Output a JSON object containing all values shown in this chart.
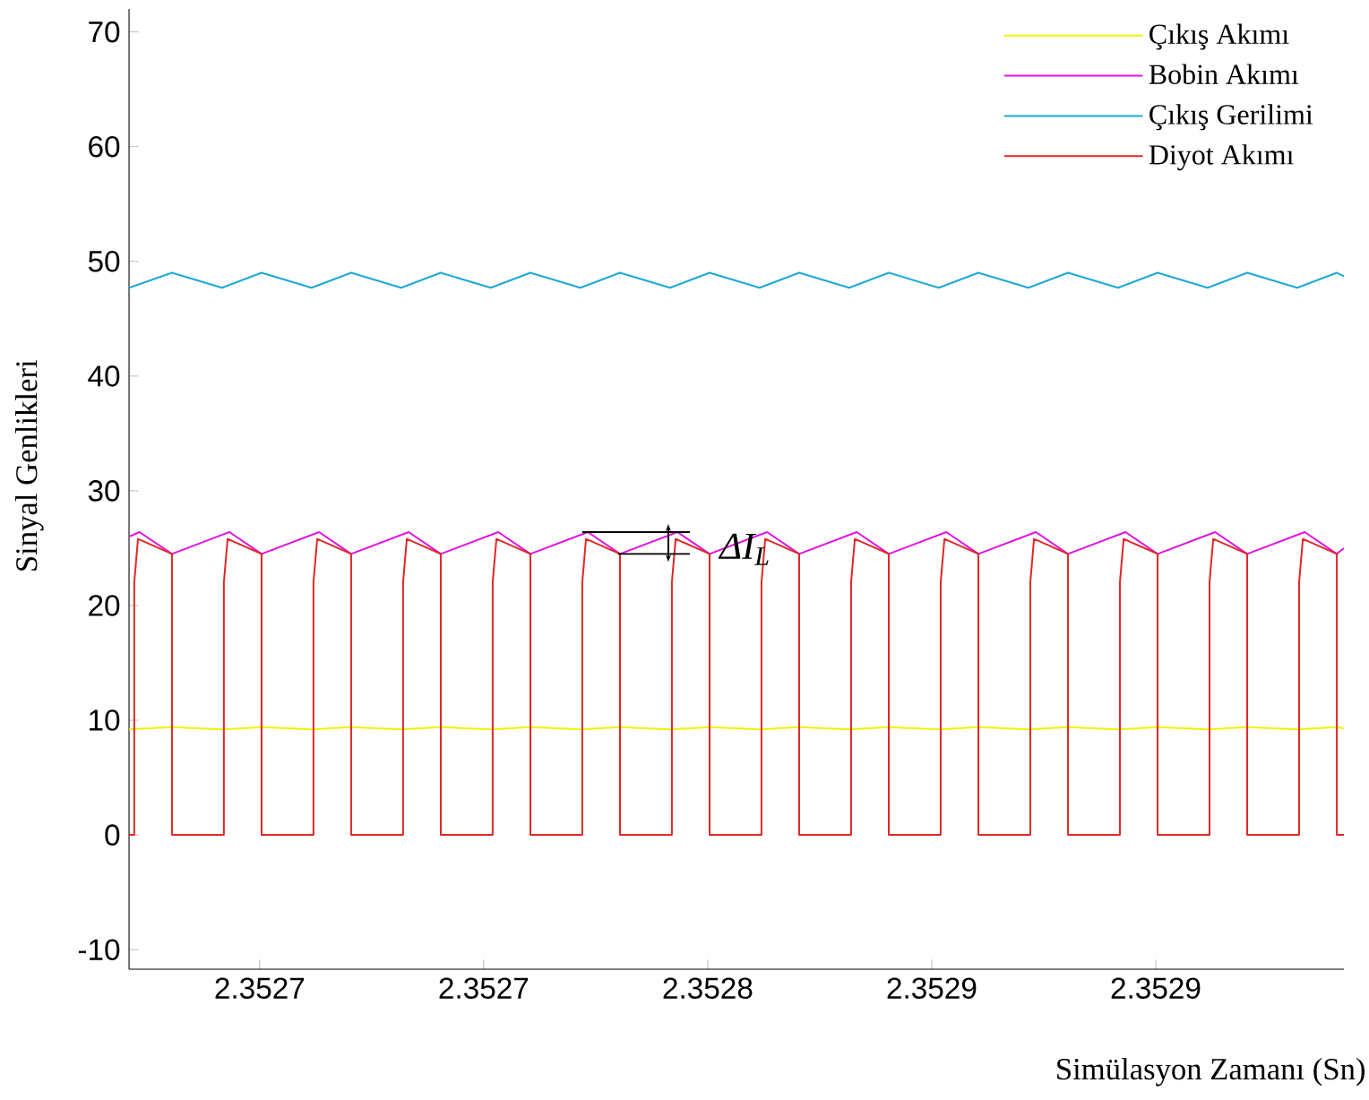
{
  "chart_data": {
    "type": "line",
    "xlabel": "Simülasyon Zamanı (Sn)",
    "ylabel": "Sinyal Genlikleri",
    "xlim": [
      2.352645,
      2.3529704
    ],
    "ylim": [
      -11.7,
      72.0
    ],
    "xticks": [
      {
        "value": 2.35268,
        "label": "2.3527"
      },
      {
        "value": 2.35274,
        "label": "2.3527"
      },
      {
        "value": 2.3528,
        "label": "2.3528"
      },
      {
        "value": 2.35286,
        "label": "2.3529"
      },
      {
        "value": 2.35292,
        "label": "2.3529"
      }
    ],
    "yticks": [
      -10,
      0,
      10,
      20,
      30,
      40,
      50,
      60,
      70
    ],
    "legend": "top right",
    "annotations": [
      {
        "text": "ΔI$_{L}$",
        "x": 2.3528024,
        "y": 24.9
      }
    ],
    "series": [
      {
        "name": "Çıkış Akımı",
        "color": "#f2f200",
        "x": [
          2.352645,
          2.3526565,
          2.3526699,
          2.3526805,
          2.3526939,
          2.3527045,
          2.3527179,
          2.3527285,
          2.3527419,
          2.3527525,
          2.3527659,
          2.3527765,
          2.3527899,
          2.3528005,
          2.3528139,
          2.3528245,
          2.3528379,
          2.3528485,
          2.3528619,
          2.3528725,
          2.3528859,
          2.3528965,
          2.3529099,
          2.3529205,
          2.3529339,
          2.3529445,
          2.3529579,
          2.3529685,
          2.3529704
        ],
        "values": [
          9.2,
          9.4,
          9.2,
          9.4,
          9.2,
          9.4,
          9.2,
          9.4,
          9.2,
          9.4,
          9.2,
          9.4,
          9.2,
          9.4,
          9.2,
          9.4,
          9.2,
          9.4,
          9.2,
          9.4,
          9.2,
          9.4,
          9.2,
          9.4,
          9.2,
          9.4,
          9.2,
          9.4,
          9.3
        ]
      },
      {
        "name": "Bobin Akımı",
        "color": "#e014e0",
        "x": [
          2.352645,
          2.3526478,
          2.3526565,
          2.3526719,
          2.3526805,
          2.3526959,
          2.3527045,
          2.3527199,
          2.3527285,
          2.3527439,
          2.3527525,
          2.3527679,
          2.3527765,
          2.3527919,
          2.3528005,
          2.3528159,
          2.3528245,
          2.3528399,
          2.3528485,
          2.3528639,
          2.3528725,
          2.3528879,
          2.3528965,
          2.3529119,
          2.3529205,
          2.3529359,
          2.3529445,
          2.3529599,
          2.3529685,
          2.3529704
        ],
        "values": [
          26.0,
          26.4,
          24.5,
          26.4,
          24.5,
          26.4,
          24.5,
          26.4,
          24.5,
          26.4,
          24.5,
          26.4,
          24.5,
          26.4,
          24.5,
          26.4,
          24.5,
          26.4,
          24.5,
          26.4,
          24.5,
          26.4,
          24.5,
          26.4,
          24.5,
          26.4,
          24.5,
          26.4,
          24.5,
          25.0
        ]
      },
      {
        "name": "Çıkış Gerilimi",
        "color": "#1fa8d4",
        "x": [
          2.352645,
          2.3526565,
          2.3526699,
          2.3526805,
          2.3526939,
          2.3527045,
          2.3527179,
          2.3527285,
          2.3527419,
          2.3527525,
          2.3527659,
          2.3527765,
          2.3527899,
          2.3528005,
          2.3528139,
          2.3528245,
          2.3528379,
          2.3528485,
          2.3528619,
          2.3528725,
          2.3528859,
          2.3528965,
          2.3529099,
          2.3529205,
          2.3529339,
          2.3529445,
          2.3529579,
          2.3529685,
          2.3529704
        ],
        "values": [
          47.7,
          49.0,
          47.7,
          49.0,
          47.7,
          49.0,
          47.7,
          49.0,
          47.7,
          49.0,
          47.7,
          49.0,
          47.7,
          49.0,
          47.7,
          49.0,
          47.7,
          49.0,
          47.7,
          49.0,
          47.7,
          49.0,
          47.7,
          49.0,
          47.7,
          49.0,
          47.7,
          49.0,
          48.7
        ]
      },
      {
        "name": "Diyot Akımı",
        "color": "#e02828",
        "x": [
          2.352645,
          2.3526464,
          2.3526464,
          2.3526474,
          2.3526565,
          2.3526565,
          2.3526704,
          2.3526704,
          2.3526714,
          2.3526805,
          2.3526805,
          2.3526944,
          2.3526944,
          2.3526954,
          2.3527045,
          2.3527045,
          2.3527184,
          2.3527184,
          2.3527194,
          2.3527285,
          2.3527285,
          2.3527424,
          2.3527424,
          2.3527434,
          2.3527525,
          2.3527525,
          2.3527664,
          2.3527664,
          2.3527674,
          2.3527765,
          2.3527765,
          2.3527904,
          2.3527904,
          2.3527914,
          2.3528005,
          2.3528005,
          2.3528144,
          2.3528144,
          2.3528154,
          2.3528245,
          2.3528245,
          2.3528384,
          2.3528384,
          2.3528394,
          2.3528485,
          2.3528485,
          2.3528624,
          2.3528624,
          2.3528634,
          2.3528725,
          2.3528725,
          2.3528864,
          2.3528864,
          2.3528874,
          2.3528965,
          2.3528965,
          2.3529104,
          2.3529104,
          2.3529114,
          2.3529205,
          2.3529205,
          2.3529344,
          2.3529344,
          2.3529354,
          2.3529445,
          2.3529445,
          2.3529584,
          2.3529584,
          2.3529594,
          2.3529685,
          2.3529685,
          2.3529704
        ],
        "values": [
          0,
          0,
          22,
          25.8,
          24.5,
          0,
          0,
          22,
          25.8,
          24.5,
          0,
          0,
          22,
          25.8,
          24.5,
          0,
          0,
          22,
          25.8,
          24.5,
          0,
          0,
          22,
          25.8,
          24.5,
          0,
          0,
          22,
          25.8,
          24.5,
          0,
          0,
          22,
          25.8,
          24.5,
          0,
          0,
          22,
          25.8,
          24.5,
          0,
          0,
          22,
          25.8,
          24.5,
          0,
          0,
          22,
          25.8,
          24.5,
          0,
          0,
          22,
          25.8,
          24.5,
          0,
          0,
          22,
          25.8,
          24.5,
          0,
          0,
          22,
          25.8,
          24.5,
          0,
          0,
          22,
          25.8,
          24.5,
          0,
          0
        ]
      }
    ]
  }
}
